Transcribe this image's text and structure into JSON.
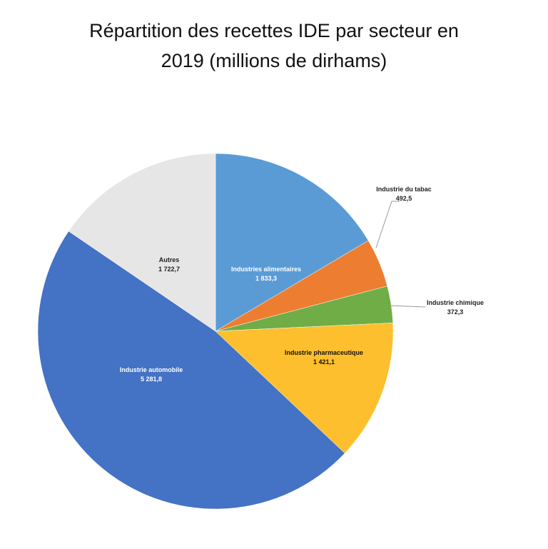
{
  "chart_data": {
    "type": "pie",
    "title_line1": "Répartition des recettes IDE par secteur en",
    "title_line2": "2019 (millions de dirhams)",
    "start": "top",
    "direction": "clockwise",
    "slices": [
      {
        "label": "Industries alimentaires",
        "value": 1833.3,
        "value_text": "1 833,3",
        "color": "#5B9BD5",
        "text_color": "#ffffff",
        "label_position": "inside"
      },
      {
        "label": "Industrie du tabac",
        "value": 492.5,
        "value_text": "492,5",
        "color": "#ED7D31",
        "text_color": "#222222",
        "label_position": "outside"
      },
      {
        "label": "Industrie chimique",
        "value": 372.3,
        "value_text": "372,3",
        "color": "#70AD47",
        "text_color": "#222222",
        "label_position": "outside"
      },
      {
        "label": "Industrie pharmaceutique",
        "value": 1421.1,
        "value_text": "1 421,1",
        "color": "#FDBF2D",
        "text_color": "#111111",
        "label_position": "inside"
      },
      {
        "label": "Industrie automobile",
        "value": 5281.8,
        "value_text": "5 281,8",
        "color": "#4472C4",
        "text_color": "#ffffff",
        "label_position": "inside"
      },
      {
        "label": "Autres",
        "value": 1722.7,
        "value_text": "1 722,7",
        "color": "#E7E6E6",
        "text_color": "#222222",
        "label_position": "inside"
      }
    ]
  }
}
